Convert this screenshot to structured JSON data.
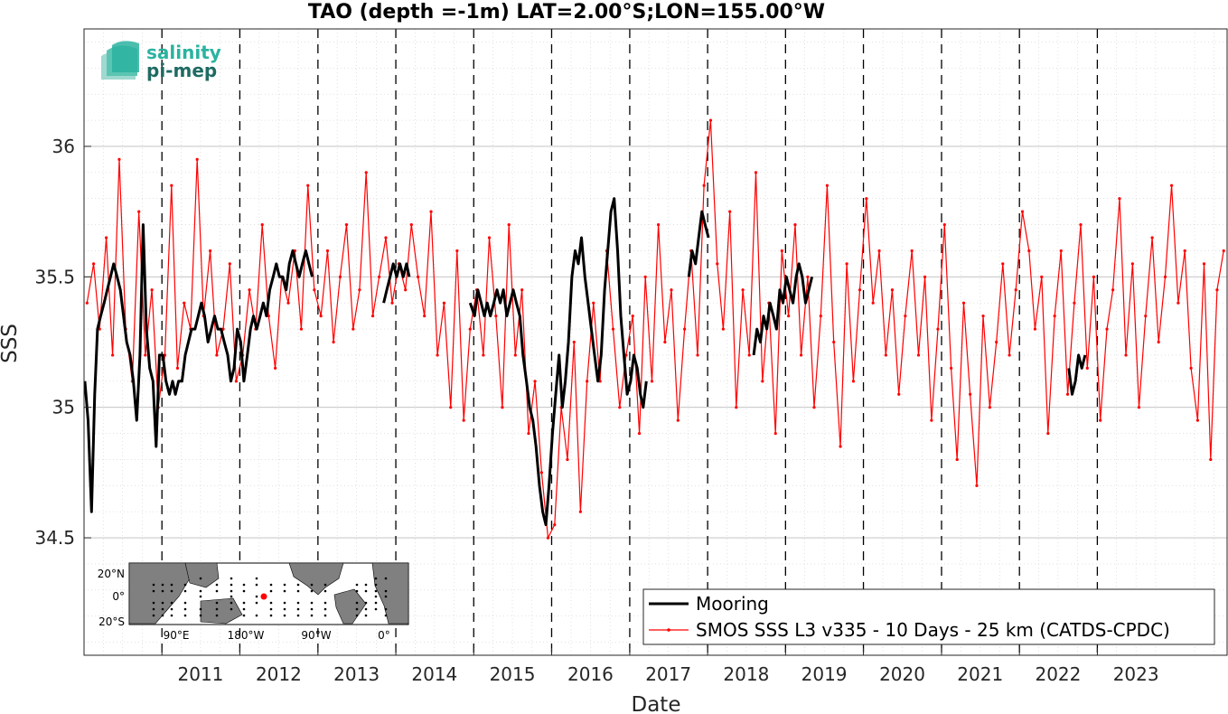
{
  "chart_data": {
    "type": "line",
    "title": "TAO (depth =-1m) LAT=2.00°S;LON=155.00°W",
    "xlabel": "Date",
    "ylabel": "SSS",
    "xlim": [
      "2010-01-01",
      "2024-08-31"
    ],
    "ylim": [
      34.05,
      36.45
    ],
    "x_ticks": [
      "2011",
      "2012",
      "2013",
      "2014",
      "2015",
      "2016",
      "2017",
      "2018",
      "2019",
      "2020",
      "2021",
      "2022",
      "2023"
    ],
    "y_ticks": [
      "34.5",
      "35",
      "35.5",
      "36"
    ],
    "grid": true,
    "year_lines": "dashed",
    "legend_position": "bottom-right",
    "series": [
      {
        "name": "Mooring",
        "color": "#000000",
        "style": "thick line",
        "segments": [
          {
            "x": [
              "2010-01-05",
              "2010-01-20",
              "2010-02-05",
              "2010-02-20",
              "2010-03-05",
              "2010-03-20",
              "2010-04-05",
              "2010-04-20",
              "2010-05-05",
              "2010-05-20",
              "2010-06-05",
              "2010-06-20",
              "2010-07-05",
              "2010-07-20",
              "2010-08-05",
              "2010-08-20",
              "2010-09-05",
              "2010-09-20",
              "2010-10-05",
              "2010-10-20",
              "2010-11-05",
              "2010-11-20",
              "2010-12-05",
              "2010-12-20",
              "2011-01-05",
              "2011-01-20",
              "2011-02-05",
              "2011-02-20",
              "2011-03-05",
              "2011-03-20",
              "2011-04-05",
              "2011-04-20",
              "2011-05-05",
              "2011-05-20",
              "2011-06-05",
              "2011-06-20",
              "2011-07-05",
              "2011-07-20",
              "2011-08-05",
              "2011-08-20",
              "2011-09-05",
              "2011-09-20",
              "2011-10-05",
              "2011-10-20",
              "2011-11-05",
              "2011-11-20",
              "2011-12-05",
              "2011-12-20",
              "2012-01-05",
              "2012-01-20",
              "2012-02-05",
              "2012-02-20",
              "2012-03-05",
              "2012-03-20",
              "2012-04-05",
              "2012-04-20",
              "2012-05-05",
              "2012-05-20",
              "2012-06-05",
              "2012-06-20",
              "2012-07-05",
              "2012-07-20",
              "2012-08-05",
              "2012-08-20",
              "2012-09-05",
              "2012-09-20",
              "2012-10-05",
              "2012-10-20",
              "2012-11-05",
              "2012-11-20",
              "2012-12-05"
            ],
            "y": [
              35.1,
              34.95,
              34.6,
              35.05,
              35.3,
              35.35,
              35.4,
              35.45,
              35.5,
              35.55,
              35.5,
              35.45,
              35.35,
              35.25,
              35.2,
              35.1,
              34.95,
              35.2,
              35.7,
              35.3,
              35.15,
              35.1,
              34.85,
              35.2,
              35.2,
              35.1,
              35.05,
              35.1,
              35.05,
              35.1,
              35.1,
              35.2,
              35.25,
              35.3,
              35.3,
              35.35,
              35.4,
              35.35,
              35.25,
              35.3,
              35.35,
              35.3,
              35.3,
              35.25,
              35.2,
              35.1,
              35.15,
              35.3,
              35.25,
              35.1,
              35.2,
              35.3,
              35.35,
              35.3,
              35.35,
              35.4,
              35.35,
              35.45,
              35.5,
              35.55,
              35.5,
              35.5,
              35.45,
              35.55,
              35.6,
              35.55,
              35.5,
              35.55,
              35.6,
              35.55,
              35.5
            ]
          },
          {
            "x": [
              "2013-11-05",
              "2013-11-20",
              "2013-12-05",
              "2013-12-20",
              "2014-01-05",
              "2014-01-20",
              "2014-02-05",
              "2014-02-20",
              "2014-03-05"
            ],
            "y": [
              35.4,
              35.45,
              35.5,
              35.55,
              35.5,
              35.55,
              35.5,
              35.55,
              35.5
            ]
          },
          {
            "x": [
              "2014-12-15",
              "2015-01-05",
              "2015-01-20",
              "2015-02-05",
              "2015-02-20",
              "2015-03-05",
              "2015-03-20",
              "2015-04-05",
              "2015-04-20",
              "2015-05-05",
              "2015-05-20",
              "2015-06-05",
              "2015-06-20",
              "2015-07-05",
              "2015-07-20",
              "2015-08-05",
              "2015-08-20",
              "2015-09-05",
              "2015-09-20",
              "2015-10-05",
              "2015-10-20",
              "2015-11-05",
              "2015-11-20",
              "2015-12-05",
              "2015-12-20",
              "2016-01-05",
              "2016-01-20",
              "2016-02-05",
              "2016-02-20",
              "2016-03-05",
              "2016-03-20",
              "2016-04-05",
              "2016-04-20",
              "2016-05-05",
              "2016-05-20",
              "2016-06-05",
              "2016-06-20",
              "2016-07-05",
              "2016-07-20",
              "2016-08-05",
              "2016-08-20",
              "2016-09-05",
              "2016-09-20",
              "2016-10-05",
              "2016-10-20",
              "2016-11-05",
              "2016-11-20",
              "2016-12-05",
              "2016-12-20",
              "2017-01-05",
              "2017-01-20",
              "2017-02-05",
              "2017-02-20",
              "2017-03-05",
              "2017-03-20"
            ],
            "y": [
              35.4,
              35.35,
              35.45,
              35.4,
              35.35,
              35.4,
              35.35,
              35.4,
              35.45,
              35.4,
              35.45,
              35.35,
              35.4,
              35.45,
              35.4,
              35.35,
              35.2,
              35.1,
              35.0,
              34.95,
              34.85,
              34.7,
              34.6,
              34.55,
              34.7,
              34.9,
              35.05,
              35.2,
              35.0,
              35.1,
              35.25,
              35.5,
              35.6,
              35.55,
              35.65,
              35.5,
              35.4,
              35.3,
              35.2,
              35.1,
              35.2,
              35.45,
              35.6,
              35.75,
              35.8,
              35.6,
              35.35,
              35.2,
              35.05,
              35.1,
              35.2,
              35.15,
              35.05,
              35.0,
              35.1
            ]
          },
          {
            "x": [
              "2017-10-05",
              "2017-10-20",
              "2017-11-05",
              "2017-11-20",
              "2017-12-05",
              "2017-12-20",
              "2018-01-05"
            ],
            "y": [
              35.5,
              35.6,
              35.55,
              35.65,
              35.75,
              35.7,
              35.65
            ]
          },
          {
            "x": [
              "2018-08-05",
              "2018-08-20",
              "2018-09-05",
              "2018-09-20",
              "2018-10-05",
              "2018-10-20",
              "2018-11-05",
              "2018-11-20",
              "2018-12-05",
              "2018-12-20",
              "2019-01-05",
              "2019-01-20",
              "2019-02-05",
              "2019-02-20",
              "2019-03-05",
              "2019-03-20",
              "2019-04-05",
              "2019-04-20",
              "2019-05-05"
            ],
            "y": [
              35.2,
              35.3,
              35.25,
              35.35,
              35.3,
              35.4,
              35.35,
              35.3,
              35.45,
              35.4,
              35.5,
              35.45,
              35.4,
              35.5,
              35.55,
              35.5,
              35.4,
              35.45,
              35.5
            ]
          },
          {
            "x": [
              "2022-08-20",
              "2022-09-05",
              "2022-09-20",
              "2022-10-05",
              "2022-10-20",
              "2022-11-05"
            ],
            "y": [
              35.15,
              35.05,
              35.1,
              35.2,
              35.15,
              35.2
            ]
          }
        ]
      },
      {
        "name": "SMOS SSS L3 v335 - 10 Days - 25 km (CATDS-CPDC)",
        "color": "#ff0000",
        "style": "thin line with point markers",
        "x": [
          "2010-01-15",
          "2010-02-15",
          "2010-03-15",
          "2010-04-15",
          "2010-05-15",
          "2010-06-15",
          "2010-07-15",
          "2010-08-15",
          "2010-09-15",
          "2010-10-15",
          "2010-11-15",
          "2010-12-15",
          "2011-01-15",
          "2011-02-15",
          "2011-03-15",
          "2011-04-15",
          "2011-05-15",
          "2011-06-15",
          "2011-07-15",
          "2011-08-15",
          "2011-09-15",
          "2011-10-15",
          "2011-11-15",
          "2011-12-15",
          "2012-01-15",
          "2012-02-15",
          "2012-03-15",
          "2012-04-15",
          "2012-05-15",
          "2012-06-15",
          "2012-07-15",
          "2012-08-15",
          "2012-09-15",
          "2012-10-15",
          "2012-11-15",
          "2012-12-15",
          "2013-01-15",
          "2013-02-15",
          "2013-03-15",
          "2013-04-15",
          "2013-05-15",
          "2013-06-15",
          "2013-07-15",
          "2013-08-15",
          "2013-09-15",
          "2013-10-15",
          "2013-11-15",
          "2013-12-15",
          "2014-01-15",
          "2014-02-15",
          "2014-03-15",
          "2014-04-15",
          "2014-05-15",
          "2014-06-15",
          "2014-07-15",
          "2014-08-15",
          "2014-09-15",
          "2014-10-15",
          "2014-11-15",
          "2014-12-15",
          "2015-01-15",
          "2015-02-15",
          "2015-03-15",
          "2015-04-15",
          "2015-05-15",
          "2015-06-15",
          "2015-07-15",
          "2015-08-15",
          "2015-09-15",
          "2015-10-15",
          "2015-11-15",
          "2015-12-15",
          "2016-01-15",
          "2016-02-15",
          "2016-03-15",
          "2016-04-15",
          "2016-05-15",
          "2016-06-15",
          "2016-07-15",
          "2016-08-15",
          "2016-09-15",
          "2016-10-15",
          "2016-11-15",
          "2016-12-15",
          "2017-01-15",
          "2017-02-15",
          "2017-03-15",
          "2017-04-15",
          "2017-05-15",
          "2017-06-15",
          "2017-07-15",
          "2017-08-15",
          "2017-09-15",
          "2017-10-15",
          "2017-11-15",
          "2017-12-15",
          "2018-01-15",
          "2018-02-15",
          "2018-03-15",
          "2018-04-15",
          "2018-05-15",
          "2018-06-15",
          "2018-07-15",
          "2018-08-15",
          "2018-09-15",
          "2018-10-15",
          "2018-11-15",
          "2018-12-15",
          "2019-01-15",
          "2019-02-15",
          "2019-03-15",
          "2019-04-15",
          "2019-05-15",
          "2019-06-15",
          "2019-07-15",
          "2019-08-15",
          "2019-09-15",
          "2019-10-15",
          "2019-11-15",
          "2019-12-15",
          "2020-01-15",
          "2020-02-15",
          "2020-03-15",
          "2020-04-15",
          "2020-05-15",
          "2020-06-15",
          "2020-07-15",
          "2020-08-15",
          "2020-09-15",
          "2020-10-15",
          "2020-11-15",
          "2020-12-15",
          "2021-01-15",
          "2021-02-15",
          "2021-03-15",
          "2021-04-15",
          "2021-05-15",
          "2021-06-15",
          "2021-07-15",
          "2021-08-15",
          "2021-09-15",
          "2021-10-15",
          "2021-11-15",
          "2021-12-15",
          "2022-01-15",
          "2022-02-15",
          "2022-03-15",
          "2022-04-15",
          "2022-05-15",
          "2022-06-15",
          "2022-07-15",
          "2022-08-15",
          "2022-09-15",
          "2022-10-15",
          "2022-11-15",
          "2022-12-15",
          "2023-01-15",
          "2023-02-15",
          "2023-03-15",
          "2023-04-15",
          "2023-05-15",
          "2023-06-15",
          "2023-07-15",
          "2023-08-15",
          "2023-09-15",
          "2023-10-15",
          "2023-11-15",
          "2023-12-15",
          "2024-01-15",
          "2024-02-15",
          "2024-03-15",
          "2024-04-15",
          "2024-05-15",
          "2024-06-15",
          "2024-07-15",
          "2024-08-15"
        ],
        "y": [
          35.4,
          35.55,
          35.3,
          35.65,
          35.2,
          35.95,
          35.3,
          35.1,
          35.75,
          35.2,
          35.45,
          35.0,
          35.2,
          35.85,
          35.15,
          35.4,
          35.3,
          35.95,
          35.35,
          35.6,
          35.2,
          35.3,
          35.55,
          35.1,
          35.2,
          35.45,
          35.3,
          35.7,
          35.35,
          35.15,
          35.5,
          35.4,
          35.6,
          35.3,
          35.85,
          35.45,
          35.35,
          35.6,
          35.25,
          35.5,
          35.7,
          35.3,
          35.45,
          35.9,
          35.35,
          35.5,
          35.65,
          35.4,
          35.55,
          35.45,
          35.7,
          35.5,
          35.35,
          35.75,
          35.2,
          35.4,
          35.0,
          35.6,
          34.95,
          35.3,
          35.45,
          35.2,
          35.65,
          35.35,
          35.0,
          35.7,
          35.2,
          35.45,
          34.9,
          35.1,
          34.75,
          34.5,
          34.55,
          35.0,
          34.8,
          35.25,
          34.6,
          35.1,
          35.4,
          35.1,
          35.6,
          35.3,
          35.0,
          35.2,
          35.35,
          34.9,
          35.5,
          35.1,
          35.7,
          35.25,
          35.45,
          34.95,
          35.3,
          35.6,
          35.2,
          35.85,
          36.1,
          35.55,
          35.3,
          35.75,
          35.0,
          35.45,
          35.2,
          35.9,
          35.1,
          35.4,
          34.9,
          35.6,
          35.35,
          35.7,
          35.2,
          35.5,
          35.0,
          35.35,
          35.85,
          35.25,
          34.85,
          35.55,
          35.1,
          35.45,
          35.8,
          35.4,
          35.6,
          35.2,
          35.45,
          35.05,
          35.35,
          35.6,
          35.2,
          35.5,
          34.95,
          35.3,
          35.7,
          35.15,
          34.8,
          35.4,
          35.05,
          34.7,
          35.35,
          35.0,
          35.25,
          35.55,
          35.2,
          35.45,
          35.75,
          35.6,
          35.3,
          35.5,
          34.9,
          35.35,
          35.6,
          35.05,
          35.4,
          35.7,
          35.15,
          35.5,
          34.95,
          35.3,
          35.45,
          35.8,
          35.2,
          35.55,
          35.0,
          35.35,
          35.65,
          35.25,
          35.5,
          35.85,
          35.4,
          35.6,
          35.15,
          34.95,
          35.55,
          34.8,
          35.45,
          35.6
        ]
      }
    ]
  },
  "logo": {
    "line1": "salinity",
    "line2": "pi-mep"
  },
  "inset_map": {
    "lat_labels": [
      "20°N",
      "0°",
      "20°S"
    ],
    "lon_labels": [
      "90°E",
      "180°W",
      "90°W",
      "0°"
    ],
    "highlight_color": "#ff0000"
  }
}
